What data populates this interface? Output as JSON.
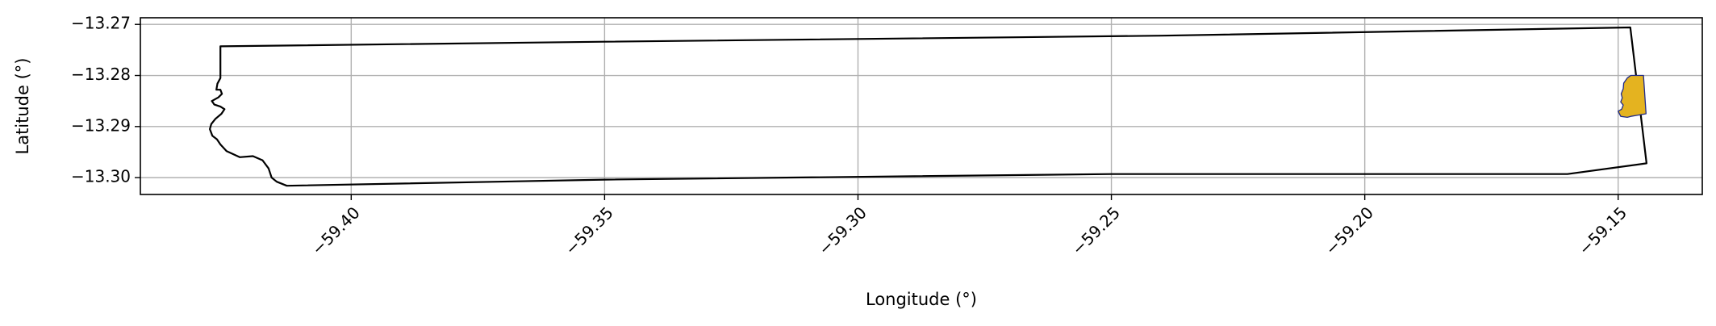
{
  "map": {
    "xlabel": "Longitude (°)",
    "ylabel": "Latitude (°)",
    "x_ticks": [
      {
        "value": -59.4,
        "label": "−59.40"
      },
      {
        "value": -59.35,
        "label": "−59.35"
      },
      {
        "value": -59.3,
        "label": "−59.30"
      },
      {
        "value": -59.25,
        "label": "−59.25"
      },
      {
        "value": -59.2,
        "label": "−59.20"
      },
      {
        "value": -59.15,
        "label": "−59.15"
      }
    ],
    "y_ticks": [
      {
        "value": -13.27,
        "label": "−13.27"
      },
      {
        "value": -13.28,
        "label": "−13.28"
      },
      {
        "value": -13.29,
        "label": "−13.29"
      },
      {
        "value": -13.3,
        "label": "−13.30"
      }
    ],
    "xlim": [
      -59.4416,
      -59.1334
    ],
    "ylim": [
      -13.3033,
      -13.2687
    ],
    "grid": true,
    "colors": {
      "boundary": "#000000",
      "highlight_fill": "#e4b320",
      "highlight_edge": "#1f2a8a",
      "grid": "#b0b0b0"
    },
    "boundary": [
      [
        -59.4258,
        -13.2743
      ],
      [
        -59.35,
        -13.2734
      ],
      [
        -59.24,
        -13.2722
      ],
      [
        -59.1476,
        -13.2706
      ],
      [
        -59.1444,
        -13.2972
      ],
      [
        -59.16,
        -13.2993
      ],
      [
        -59.25,
        -13.2993
      ],
      [
        -59.35,
        -13.3004
      ],
      [
        -59.4127,
        -13.3016
      ],
      [
        -59.4147,
        -13.3008
      ],
      [
        -59.4157,
        -13.3
      ],
      [
        -59.4163,
        -13.2982
      ],
      [
        -59.4175,
        -13.2966
      ],
      [
        -59.4194,
        -13.2958
      ],
      [
        -59.422,
        -13.296
      ],
      [
        -59.4246,
        -13.2948
      ],
      [
        -59.4258,
        -13.2935
      ],
      [
        -59.4265,
        -13.2925
      ],
      [
        -59.4274,
        -13.2918
      ],
      [
        -59.4279,
        -13.2905
      ],
      [
        -59.4276,
        -13.2895
      ],
      [
        -59.4268,
        -13.2885
      ],
      [
        -59.4256,
        -13.2875
      ],
      [
        -59.425,
        -13.2866
      ],
      [
        -59.4258,
        -13.2861
      ],
      [
        -59.427,
        -13.2857
      ],
      [
        -59.4275,
        -13.285
      ],
      [
        -59.4262,
        -13.2843
      ],
      [
        -59.4255,
        -13.2836
      ],
      [
        -59.4258,
        -13.2828
      ],
      [
        -59.4266,
        -13.2828
      ],
      [
        -59.4264,
        -13.2816
      ],
      [
        -59.4258,
        -13.2805
      ],
      [
        -59.4258,
        -13.2743
      ]
    ],
    "highlight_region": [
      [
        -59.1475,
        -13.28
      ],
      [
        -59.145,
        -13.28
      ],
      [
        -59.1445,
        -13.2875
      ],
      [
        -59.1475,
        -13.288
      ],
      [
        -59.1482,
        -13.2882
      ],
      [
        -59.1495,
        -13.288
      ],
      [
        -59.15,
        -13.287
      ],
      [
        -59.1493,
        -13.2866
      ],
      [
        -59.149,
        -13.2858
      ],
      [
        -59.1495,
        -13.2852
      ],
      [
        -59.1492,
        -13.2844
      ],
      [
        -59.1494,
        -13.2836
      ],
      [
        -59.149,
        -13.2826
      ],
      [
        -59.1489,
        -13.2815
      ],
      [
        -59.1482,
        -13.2805
      ],
      [
        -59.1475,
        -13.28
      ]
    ]
  }
}
